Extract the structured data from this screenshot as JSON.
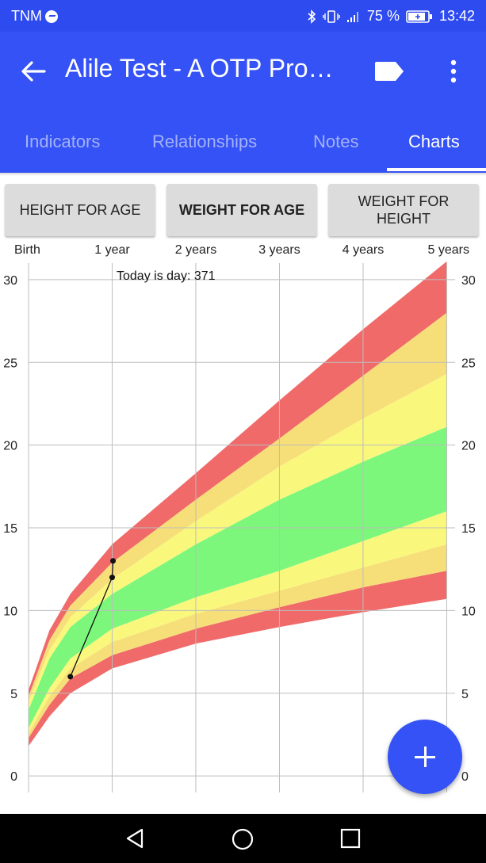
{
  "status_bar": {
    "carrier": "TNM",
    "battery": "75 %",
    "time": "13:42"
  },
  "app_bar": {
    "title": "Alile Test - A OTP Pro…",
    "tabs": [
      "Indicators",
      "Relationships",
      "Notes",
      "Charts"
    ],
    "active_tab": 3
  },
  "buttons": {
    "height_for_age": "HEIGHT FOR AGE",
    "weight_for_age": "WEIGHT FOR AGE",
    "weight_for_height_line1": "WEIGHT FOR",
    "weight_for_height_line2": "HEIGHT"
  },
  "chart_data": {
    "type": "area",
    "title": "",
    "annotation": "Today is day: 371",
    "x_tick_labels": [
      "Birth",
      "1 year",
      "2 years",
      "3 years",
      "4 years",
      "5 years"
    ],
    "x_ticks_years": [
      0,
      1,
      2,
      3,
      4,
      5
    ],
    "xlim": [
      0,
      5.1
    ],
    "ylim": [
      -1,
      31
    ],
    "y_ticks": [
      0,
      5,
      10,
      15,
      20,
      25,
      30
    ],
    "grid": true,
    "bands": {
      "x": [
        0,
        0.25,
        0.5,
        1,
        2,
        3,
        4,
        5
      ],
      "boundaries": [
        [
          1.8,
          3.6,
          5.0,
          6.5,
          8.0,
          9.0,
          9.9,
          10.7
        ],
        [
          2.3,
          4.3,
          5.9,
          7.3,
          8.9,
          10.2,
          11.4,
          12.4
        ],
        [
          2.6,
          4.8,
          6.5,
          8.1,
          9.8,
          11.2,
          12.6,
          14.0
        ],
        [
          2.9,
          5.3,
          7.1,
          8.9,
          10.8,
          12.4,
          14.2,
          16.0
        ],
        [
          4.0,
          7.1,
          9.0,
          11.0,
          14.0,
          16.7,
          19.0,
          21.1
        ],
        [
          4.5,
          7.6,
          9.6,
          11.9,
          15.4,
          18.7,
          21.6,
          24.3
        ],
        [
          4.8,
          8.2,
          10.3,
          12.9,
          16.7,
          20.4,
          24.2,
          28.0
        ],
        [
          5.2,
          8.8,
          11.0,
          14.0,
          18.3,
          22.7,
          27.0,
          31.1
        ]
      ],
      "colors": [
        "#f06a6a",
        "#f6df79",
        "#faf77d",
        "#7cf77c",
        "#faf77d",
        "#f6df79",
        "#f06a6a"
      ]
    },
    "measurements": {
      "x": [
        0.5,
        1.0,
        1.01
      ],
      "y": [
        6.0,
        12.0,
        13.0
      ]
    }
  },
  "nav_bar": {
    "back": "back-icon",
    "home": "home-icon",
    "recents": "recents-icon"
  }
}
